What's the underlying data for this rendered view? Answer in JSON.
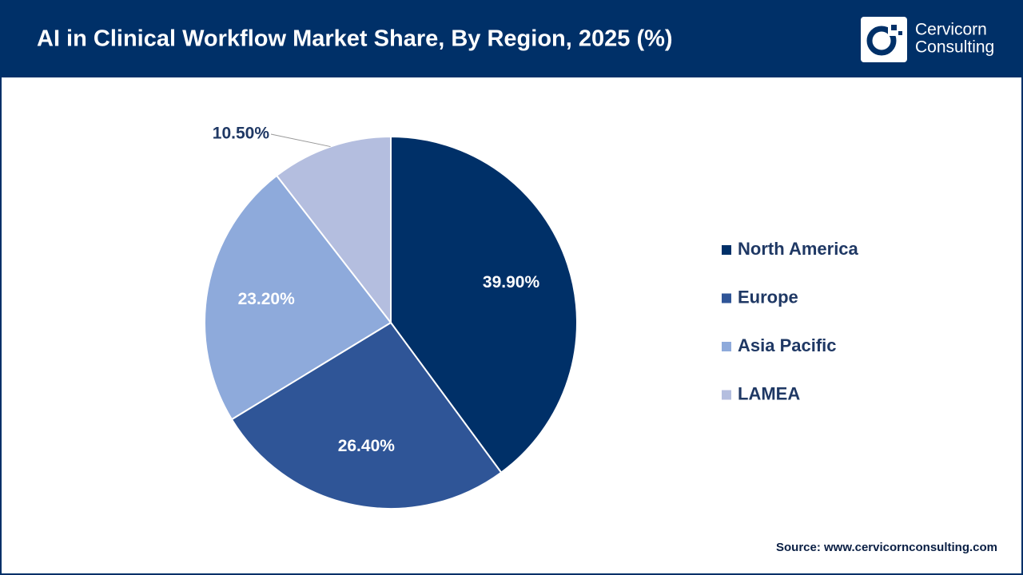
{
  "chart_data": {
    "type": "pie",
    "title": "AI in Clinical Workflow Market Share, By Region, 2025 (%)",
    "categories": [
      "North America",
      "Europe",
      "Asia Pacific",
      "LAMEA"
    ],
    "values": [
      39.9,
      26.4,
      23.2,
      10.5
    ],
    "value_labels": [
      "39.90%",
      "26.40%",
      "23.20%",
      "10.50%"
    ],
    "colors": [
      "#003068",
      "#2f5597",
      "#8eaadb",
      "#b4bedf"
    ],
    "legend": "right",
    "source": "Source: www.cervicornconsulting.com"
  },
  "logo": {
    "line1": "Cervicorn",
    "line2": "Consulting"
  }
}
